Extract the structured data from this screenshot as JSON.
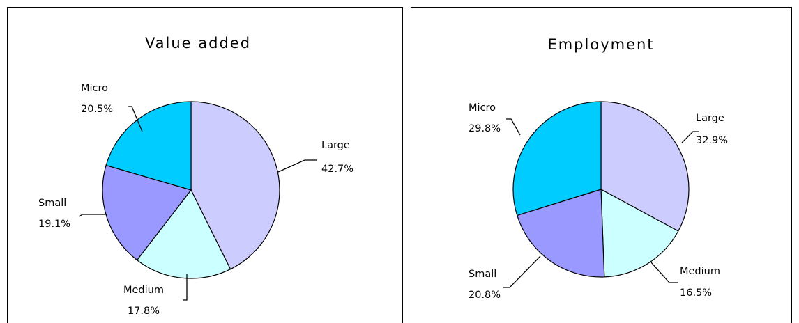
{
  "colors": {
    "large": "#ccccff",
    "medium": "#ccffff",
    "small": "#9999ff",
    "micro": "#00ccff"
  },
  "chart_data": [
    {
      "type": "pie",
      "title": "Value added",
      "slices": [
        {
          "label": "Large",
          "value": 42.7,
          "value_text": "42.7%",
          "color": "#ccccff"
        },
        {
          "label": "Medium",
          "value": 17.8,
          "value_text": "17.8%",
          "color": "#ccffff"
        },
        {
          "label": "Small",
          "value": 19.1,
          "value_text": "19.1%",
          "color": "#9999ff"
        },
        {
          "label": "Micro",
          "value": 20.5,
          "value_text": "20.5%",
          "color": "#00ccff"
        }
      ]
    },
    {
      "type": "pie",
      "title": "Employment",
      "slices": [
        {
          "label": "Large",
          "value": 32.9,
          "value_text": "32.9%",
          "color": "#ccccff"
        },
        {
          "label": "Medium",
          "value": 16.5,
          "value_text": "16.5%",
          "color": "#ccffff"
        },
        {
          "label": "Small",
          "value": 20.8,
          "value_text": "20.8%",
          "color": "#9999ff"
        },
        {
          "label": "Micro",
          "value": 29.8,
          "value_text": "29.8%",
          "color": "#00ccff"
        }
      ]
    }
  ]
}
